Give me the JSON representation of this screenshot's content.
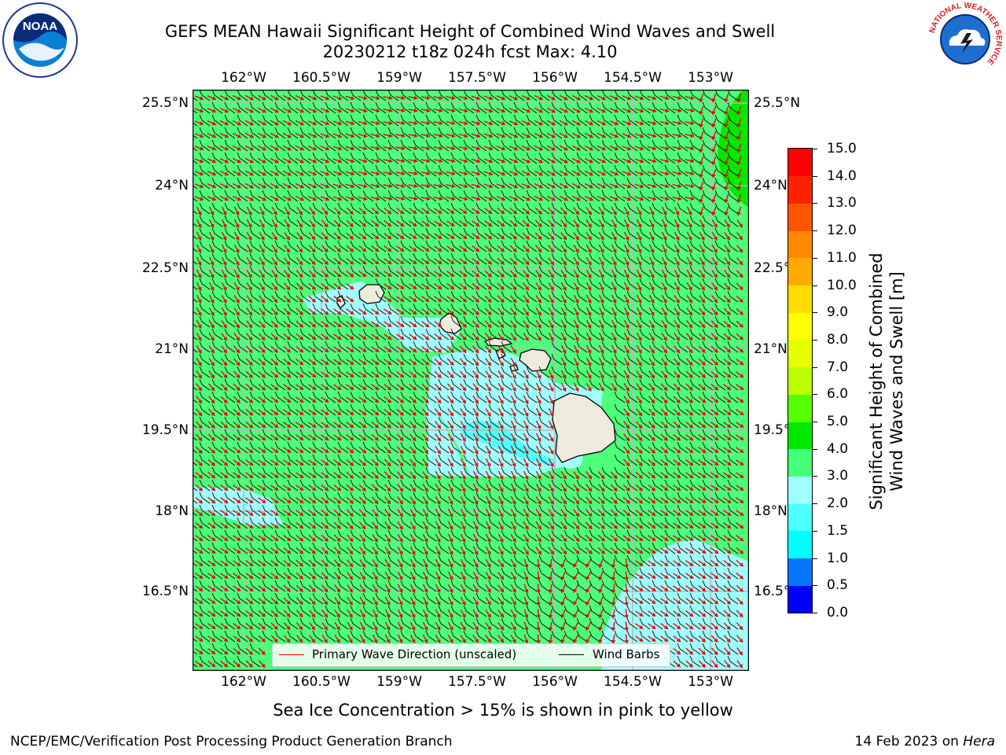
{
  "title": {
    "line1": "GEFS MEAN Hawaii Significant Height of Combined Wind Waves and Swell",
    "line2": "20230212 t18z 024h fcst   Max: 4.10"
  },
  "axes": {
    "lon_ticks": [
      "162°W",
      "160.5°W",
      "159°W",
      "157.5°W",
      "156°W",
      "154.5°W",
      "153°W"
    ],
    "lat_ticks": [
      "25.5°N",
      "24°N",
      "22.5°N",
      "21°N",
      "19.5°N",
      "18°N",
      "16.5°N"
    ],
    "lon_range": [
      -163,
      -152.2
    ],
    "lat_range": [
      15,
      25.7
    ]
  },
  "colorbar": {
    "title_line1": "Significant Height of Combined",
    "title_line2": "Wind Waves and Swell [m]",
    "labels": [
      "0.0",
      "0.5",
      "1.0",
      "1.5",
      "2.0",
      "3.0",
      "4.0",
      "5.0",
      "6.0",
      "7.0",
      "8.0",
      "9.0",
      "10.0",
      "11.0",
      "12.0",
      "13.0",
      "14.0",
      "15.0"
    ],
    "colors": [
      "#0000ff",
      "#0a74ff",
      "#00ffff",
      "#4dffff",
      "#a0ffff",
      "#44ff77",
      "#00e800",
      "#55ff00",
      "#bbff00",
      "#e6ff00",
      "#ffff00",
      "#ffdd00",
      "#ffaa00",
      "#ff8800",
      "#ff5500",
      "#ff2200",
      "#ff0000"
    ]
  },
  "map_colors": {
    "sea_default": "#4dff7a",
    "sea_low": "#a0ffff",
    "sea_very_low": "#55ffff",
    "sea_high": "#00e800",
    "land": "#efebdc",
    "grid": "#b8b8b8",
    "arrow": "#ee0000",
    "barb": "#000000"
  },
  "legend": {
    "wave_label": "Primary Wave Direction (unscaled)",
    "barb_label": "Wind Barbs"
  },
  "footer": {
    "note": "Sea Ice Concentration > 15% is shown in pink to yellow",
    "credit": "NCEP/EMC/Verification Post Processing Product Generation Branch",
    "date": "14 Feb 2023 on",
    "host": "Hera"
  },
  "logos": {
    "left": "NOAA",
    "right": "NATIONAL WEATHER SERVICE"
  }
}
